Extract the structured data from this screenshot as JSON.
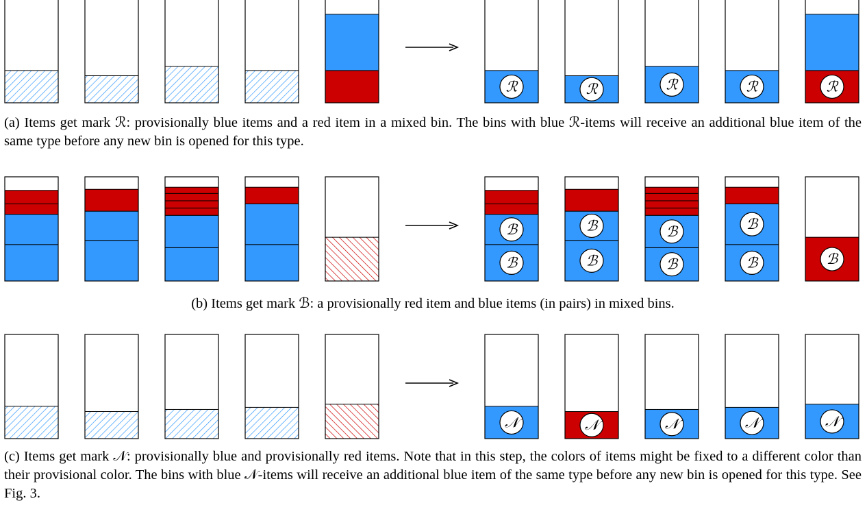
{
  "colors": {
    "blue": "#3399ff",
    "red": "#cc0000",
    "outline": "#000000",
    "background": "#ffffff"
  },
  "panels": [
    {
      "id": "a",
      "mark": "R",
      "caption": "(a) Items get mark ℛ: provisionally blue items and a red item in a mixed bin. The bins with blue ℛ-items will receive an additional blue item of the same type before any new bin is opened for this type.",
      "before_bins": [
        {
          "items": [
            {
              "color": "blue",
              "hatched": true,
              "fill": 0.31
            }
          ]
        },
        {
          "items": [
            {
              "color": "blue",
              "hatched": true,
              "fill": 0.26
            }
          ]
        },
        {
          "items": [
            {
              "color": "blue",
              "hatched": true,
              "fill": 0.35
            }
          ]
        },
        {
          "items": [
            {
              "color": "blue",
              "hatched": true,
              "fill": 0.31
            }
          ]
        },
        {
          "items": [
            {
              "color": "red",
              "hatched": false,
              "fill": 0.31
            },
            {
              "color": "blue",
              "hatched": false,
              "fill": 0.54
            }
          ]
        }
      ],
      "after_bins": [
        {
          "items": [
            {
              "color": "blue",
              "fill": 0.31,
              "mark": "ℛ"
            }
          ]
        },
        {
          "items": [
            {
              "color": "blue",
              "fill": 0.26,
              "mark": "ℛ"
            }
          ]
        },
        {
          "items": [
            {
              "color": "blue",
              "fill": 0.35,
              "mark": "ℛ"
            }
          ]
        },
        {
          "items": [
            {
              "color": "blue",
              "fill": 0.31,
              "mark": "ℛ"
            }
          ]
        },
        {
          "items": [
            {
              "color": "red",
              "fill": 0.31,
              "mark": "ℛ"
            },
            {
              "color": "blue",
              "fill": 0.54
            }
          ]
        }
      ]
    },
    {
      "id": "b",
      "mark": "B",
      "caption": "(b) Items get mark ℬ: a provisionally red item and blue items (in pairs) in mixed bins.",
      "before_bins": [
        {
          "items": [
            {
              "color": "blue",
              "fill": 0.35
            },
            {
              "color": "blue",
              "fill": 0.29
            },
            {
              "color": "red",
              "fill": 0.1
            },
            {
              "color": "red",
              "fill": 0.13
            }
          ]
        },
        {
          "items": [
            {
              "color": "blue",
              "fill": 0.39
            },
            {
              "color": "blue",
              "fill": 0.28
            },
            {
              "color": "red",
              "fill": 0.21
            }
          ]
        },
        {
          "items": [
            {
              "color": "blue",
              "fill": 0.32
            },
            {
              "color": "blue",
              "fill": 0.31
            },
            {
              "color": "red",
              "fill": 0.07
            },
            {
              "color": "red",
              "fill": 0.07
            },
            {
              "color": "red",
              "fill": 0.07
            },
            {
              "color": "red",
              "fill": 0.06
            }
          ]
        },
        {
          "items": [
            {
              "color": "blue",
              "fill": 0.35
            },
            {
              "color": "blue",
              "fill": 0.39
            },
            {
              "color": "red",
              "fill": 0.16
            }
          ]
        },
        {
          "items": [
            {
              "color": "red",
              "hatched": true,
              "fill": 0.42
            }
          ]
        }
      ],
      "after_bins": [
        {
          "items": [
            {
              "color": "blue",
              "fill": 0.35,
              "mark": "ℬ"
            },
            {
              "color": "blue",
              "fill": 0.29,
              "mark": "ℬ"
            },
            {
              "color": "red",
              "fill": 0.1
            },
            {
              "color": "red",
              "fill": 0.13
            }
          ]
        },
        {
          "items": [
            {
              "color": "blue",
              "fill": 0.39,
              "mark": "ℬ"
            },
            {
              "color": "blue",
              "fill": 0.28,
              "mark": "ℬ"
            },
            {
              "color": "red",
              "fill": 0.21
            }
          ]
        },
        {
          "items": [
            {
              "color": "blue",
              "fill": 0.32,
              "mark": "ℬ"
            },
            {
              "color": "blue",
              "fill": 0.31,
              "mark": "ℬ"
            },
            {
              "color": "red",
              "fill": 0.07
            },
            {
              "color": "red",
              "fill": 0.07
            },
            {
              "color": "red",
              "fill": 0.07
            },
            {
              "color": "red",
              "fill": 0.06
            }
          ]
        },
        {
          "items": [
            {
              "color": "blue",
              "fill": 0.35,
              "mark": "ℬ"
            },
            {
              "color": "blue",
              "fill": 0.39,
              "mark": "ℬ"
            },
            {
              "color": "red",
              "fill": 0.16
            }
          ]
        },
        {
          "items": [
            {
              "color": "red",
              "fill": 0.42,
              "mark": "ℬ"
            }
          ]
        }
      ]
    },
    {
      "id": "c",
      "mark": "N",
      "caption": "(c) Items get mark 𝒩: provisionally blue and provisionally red items. Note that in this step, the colors of items might be fixed to a different color than their provisional color. The bins with blue 𝒩-items will receive an additional blue item of the same type before any new bin is opened for this type. See Fig. 3.",
      "before_bins": [
        {
          "items": [
            {
              "color": "blue",
              "hatched": true,
              "fill": 0.31
            }
          ]
        },
        {
          "items": [
            {
              "color": "blue",
              "hatched": true,
              "fill": 0.26
            }
          ]
        },
        {
          "items": [
            {
              "color": "blue",
              "hatched": true,
              "fill": 0.28
            }
          ]
        },
        {
          "items": [
            {
              "color": "blue",
              "hatched": true,
              "fill": 0.3
            }
          ]
        },
        {
          "items": [
            {
              "color": "red",
              "hatched": true,
              "fill": 0.33
            }
          ]
        }
      ],
      "after_bins": [
        {
          "items": [
            {
              "color": "blue",
              "fill": 0.31,
              "mark": "𝒩"
            }
          ]
        },
        {
          "items": [
            {
              "color": "red",
              "fill": 0.26,
              "mark": "𝒩"
            }
          ]
        },
        {
          "items": [
            {
              "color": "blue",
              "fill": 0.28,
              "mark": "𝒩"
            }
          ]
        },
        {
          "items": [
            {
              "color": "blue",
              "fill": 0.3,
              "mark": "𝒩"
            }
          ]
        },
        {
          "items": [
            {
              "color": "blue",
              "fill": 0.33,
              "mark": "𝒩"
            }
          ]
        }
      ]
    }
  ]
}
